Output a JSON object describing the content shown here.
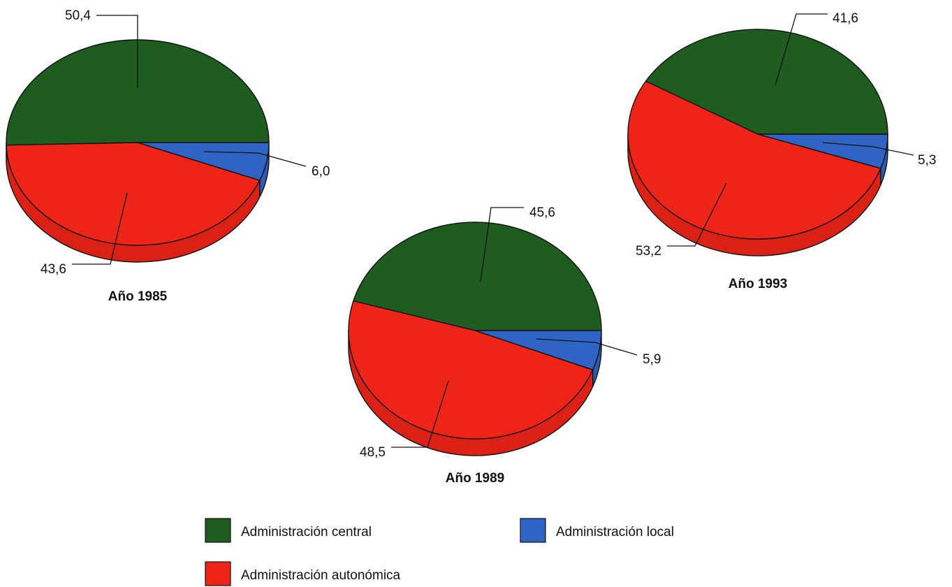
{
  "chart_data": {
    "type": "pie",
    "style": "3d-pie",
    "series_names": [
      "Administración central",
      "Administración autonómica",
      "Administración local"
    ],
    "colors": [
      "#1f5c1f",
      "#ee2418",
      "#2f63c4"
    ],
    "charts": [
      {
        "title": "Año 1985",
        "values": [
          50.4,
          43.6,
          6.0
        ],
        "value_labels": [
          "50,4",
          "43,6",
          "6,0"
        ]
      },
      {
        "title": "Año 1989",
        "values": [
          45.6,
          48.5,
          5.9
        ],
        "value_labels": [
          "45,6",
          "48,5",
          "5,9"
        ]
      },
      {
        "title": "Año 1993",
        "values": [
          41.6,
          53.2,
          5.3
        ],
        "value_labels": [
          "41,6",
          "53,2",
          "5,3"
        ]
      }
    ],
    "legend": {
      "position": "bottom",
      "items": [
        {
          "label": "Administración central",
          "color": "#1f5c1f"
        },
        {
          "label": "Administración local",
          "color": "#2f63c4"
        },
        {
          "label": "Administración autonómica",
          "color": "#ee2418"
        }
      ]
    }
  }
}
